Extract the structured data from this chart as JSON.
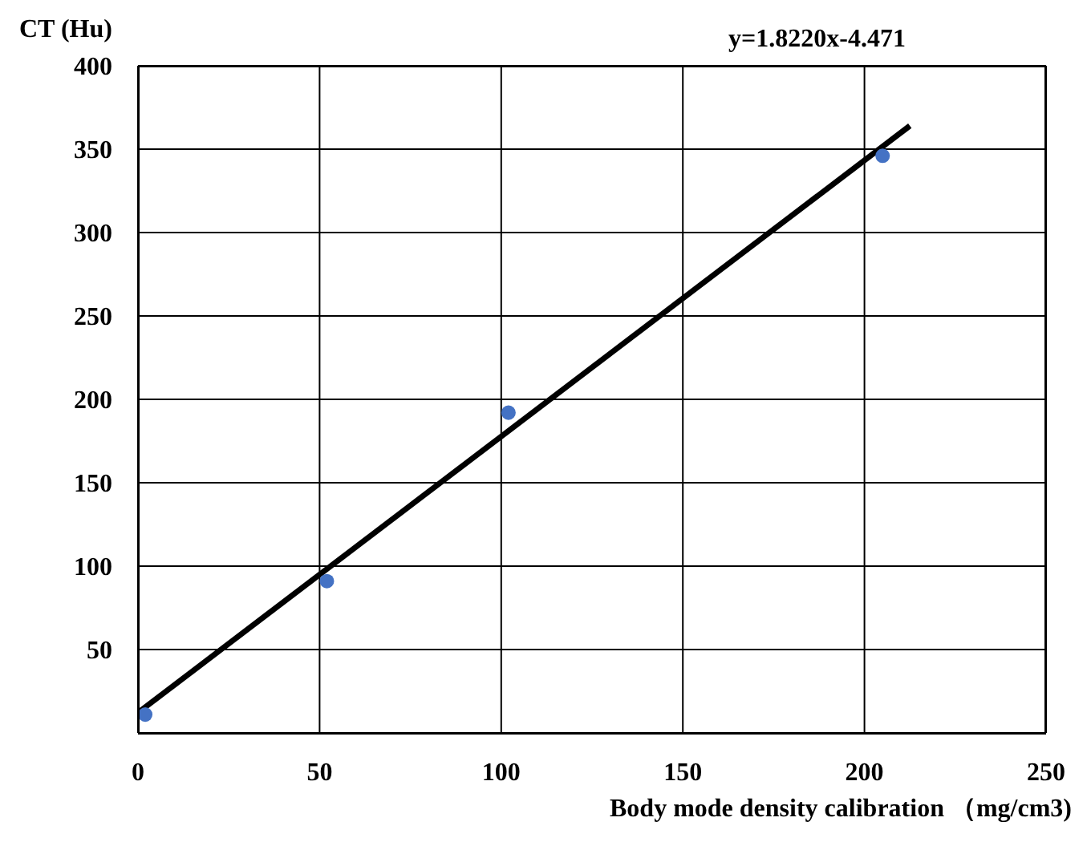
{
  "chart_data": {
    "type": "scatter",
    "xlabel": "Body mode density calibration （mg/cm3)",
    "ylabel": "CT (Hu)",
    "annotations": [
      "y=1.8220x-4.471"
    ],
    "xlim": [
      0,
      250
    ],
    "xticks": [
      0,
      50,
      100,
      150,
      200,
      250
    ],
    "ylim": [
      0,
      400
    ],
    "yticks": [
      50,
      100,
      150,
      200,
      250,
      300,
      350,
      400
    ],
    "grid": true,
    "series": [
      {
        "color": "#4472c4",
        "marker": "circle",
        "x": [
          2,
          52,
          102,
          205
        ],
        "values": [
          11,
          91,
          192,
          346
        ]
      },
      {
        "type": "line",
        "color": "#000000",
        "marker": "none",
        "line_style": "solid",
        "x": [
          0.5,
          212.5
        ],
        "values": [
          13,
          364
        ]
      }
    ]
  }
}
